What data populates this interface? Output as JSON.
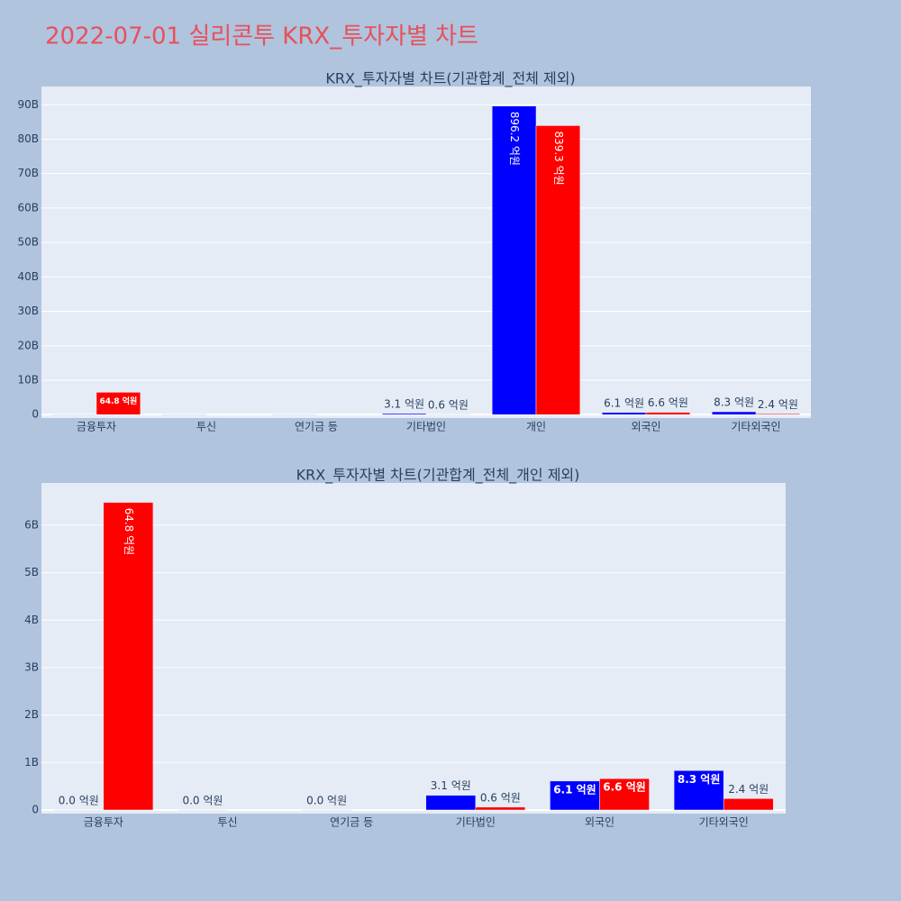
{
  "title": "2022-07-01 실리콘투 KRX_투자자별 차트",
  "chart_data": [
    {
      "type": "bar",
      "title": "KRX_투자자별 차트(기관합계_전체 제외)",
      "categories": [
        "금융투자",
        "투신",
        "연기금 등",
        "기타법인",
        "개인",
        "외국인",
        "기타외국인"
      ],
      "series": [
        {
          "color": "#0000ff",
          "values": [
            0,
            0,
            0,
            310000000,
            89620000000,
            610000000,
            830000000
          ],
          "value_labels": [
            null,
            null,
            null,
            "3.1 억원",
            "896.2 억원",
            "6.1 억원",
            "8.3 억원"
          ]
        },
        {
          "color": "#ff0000",
          "values": [
            6480000000,
            null,
            null,
            60000000,
            83930000000,
            660000000,
            240000000
          ],
          "value_labels": [
            "64.8 억원",
            null,
            null,
            "0.6 억원",
            "839.3 억원",
            "6.6 억원",
            "2.4 억원"
          ]
        }
      ],
      "ylim": [
        -1000000000,
        95300000000
      ],
      "yticks": [
        0,
        {
          "value": 10000000000,
          "label": "10B"
        },
        {
          "value": 20000000000,
          "label": "20B"
        },
        {
          "value": 30000000000,
          "label": "30B"
        },
        {
          "value": 40000000000,
          "label": "40B"
        },
        {
          "value": 50000000000,
          "label": "50B"
        },
        {
          "value": 60000000000,
          "label": "60B"
        },
        {
          "value": 70000000000,
          "label": "70B"
        },
        {
          "value": 80000000000,
          "label": "80B"
        },
        {
          "value": 90000000000,
          "label": "90B"
        }
      ],
      "grid": true
    },
    {
      "type": "bar",
      "title": "KRX_투자자별 차트(기관합계_전체_개인 제외)",
      "categories": [
        "금융투자",
        "투신",
        "연기금 등",
        "기타법인",
        "외국인",
        "기타외국인"
      ],
      "series": [
        {
          "color": "#0000ff",
          "values": [
            0,
            0,
            0,
            310000000,
            610000000,
            830000000
          ],
          "value_labels": [
            "0.0 억원",
            "0.0 억원",
            "0.0 억원",
            "3.1 억원",
            "6.1 억원",
            "8.3 억원"
          ]
        },
        {
          "color": "#ff0000",
          "values": [
            6480000000,
            null,
            null,
            60000000,
            660000000,
            240000000
          ],
          "value_labels": [
            "64.8 억원",
            null,
            null,
            "0.6 억원",
            "6.6 억원",
            "2.4 억원"
          ]
        }
      ],
      "ylim": [
        -76000000,
        6890000000
      ],
      "yticks": [
        0,
        {
          "value": 1000000000,
          "label": "1B"
        },
        {
          "value": 2000000000,
          "label": "2B"
        },
        {
          "value": 3000000000,
          "label": "3B"
        },
        {
          "value": 4000000000,
          "label": "4B"
        },
        {
          "value": 5000000000,
          "label": "5B"
        },
        {
          "value": 6000000000,
          "label": "6B"
        }
      ],
      "grid": true
    }
  ]
}
